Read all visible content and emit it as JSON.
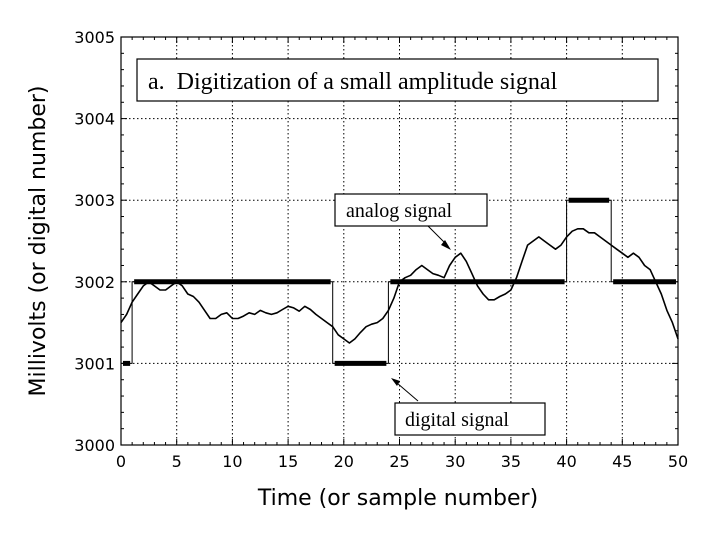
{
  "chart_data": {
    "type": "line",
    "title": "a.  Digitization of a small amplitude signal",
    "xlabel": "Time (or sample number)",
    "ylabel": "Millivolts (or digital number)",
    "xlim": [
      0,
      50
    ],
    "ylim": [
      3000,
      3005
    ],
    "xticks": [
      0,
      5,
      10,
      15,
      20,
      25,
      30,
      35,
      40,
      45,
      50
    ],
    "yticks": [
      3000,
      3001,
      3002,
      3003,
      3004,
      3005
    ],
    "grid": true,
    "annotations": {
      "analog_label": "analog signal",
      "digital_label": "digital signal"
    },
    "series": [
      {
        "name": "analog signal",
        "style": "thin line",
        "x": [
          0,
          0.5,
          1,
          1.5,
          2,
          2.5,
          3,
          3.5,
          4,
          4.5,
          5,
          5.5,
          6,
          6.5,
          7,
          7.5,
          8,
          8.5,
          9,
          9.5,
          10,
          10.5,
          11,
          11.5,
          12,
          12.5,
          13,
          13.5,
          14,
          14.5,
          15,
          15.5,
          16,
          16.5,
          17,
          17.5,
          18,
          18.5,
          19,
          19.5,
          20,
          20.5,
          21,
          21.5,
          22,
          22.5,
          23,
          23.5,
          24,
          24.5,
          25,
          25.5,
          26,
          26.5,
          27,
          27.5,
          28,
          28.5,
          29,
          29.5,
          30,
          30.5,
          31,
          31.5,
          32,
          32.5,
          33,
          33.5,
          34,
          34.5,
          35,
          35.5,
          36,
          36.5,
          37,
          37.5,
          38,
          38.5,
          39,
          39.5,
          40,
          40.5,
          41,
          41.5,
          42,
          42.5,
          43,
          43.5,
          44,
          44.5,
          45,
          45.5,
          46,
          46.5,
          47,
          47.5,
          48,
          48.5,
          49,
          49.5,
          50
        ],
        "y": [
          3001.5,
          3001.6,
          3001.75,
          3001.85,
          3001.95,
          3002.0,
          3001.95,
          3001.9,
          3001.9,
          3001.95,
          3002.0,
          3001.95,
          3001.85,
          3001.82,
          3001.75,
          3001.65,
          3001.55,
          3001.55,
          3001.6,
          3001.62,
          3001.55,
          3001.55,
          3001.58,
          3001.62,
          3001.6,
          3001.65,
          3001.62,
          3001.6,
          3001.62,
          3001.66,
          3001.7,
          3001.68,
          3001.64,
          3001.7,
          3001.66,
          3001.6,
          3001.55,
          3001.5,
          3001.45,
          3001.35,
          3001.3,
          3001.25,
          3001.3,
          3001.38,
          3001.45,
          3001.48,
          3001.5,
          3001.55,
          3001.65,
          3001.8,
          3002.0,
          3002.05,
          3002.08,
          3002.15,
          3002.2,
          3002.15,
          3002.1,
          3002.08,
          3002.05,
          3002.2,
          3002.3,
          3002.35,
          3002.25,
          3002.1,
          3001.95,
          3001.85,
          3001.78,
          3001.78,
          3001.82,
          3001.85,
          3001.9,
          3002.05,
          3002.25,
          3002.45,
          3002.5,
          3002.55,
          3002.5,
          3002.45,
          3002.4,
          3002.45,
          3002.55,
          3002.62,
          3002.65,
          3002.65,
          3002.6,
          3002.6,
          3002.55,
          3002.5,
          3002.45,
          3002.4,
          3002.35,
          3002.3,
          3002.35,
          3002.3,
          3002.2,
          3002.15,
          3002.0,
          3001.85,
          3001.65,
          3001.5,
          3001.3
        ]
      },
      {
        "name": "digital signal",
        "style": "thick step",
        "x": [
          0,
          1,
          1,
          19,
          19,
          24,
          24,
          40,
          40,
          44,
          44,
          50
        ],
        "y": [
          3001,
          3001,
          3002,
          3002,
          3001,
          3001,
          3002,
          3002,
          3003,
          3003,
          3002,
          3002
        ]
      }
    ]
  }
}
